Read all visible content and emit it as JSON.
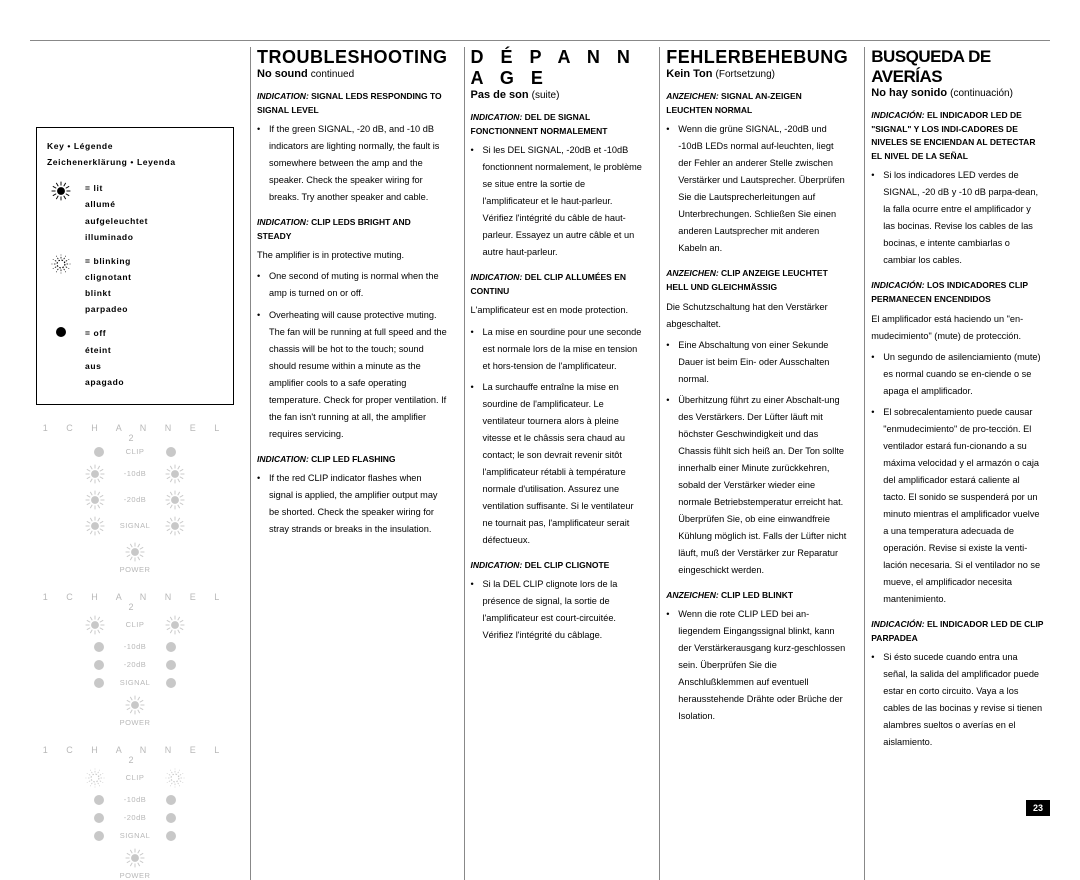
{
  "page_number": "23",
  "key": {
    "title_lines": [
      "Key • Légende",
      "Zeichenerklärung • Leyenda"
    ],
    "rows": [
      {
        "icon": "lit",
        "labels": [
          "= lit",
          "allumé",
          "aufgeleuchtet",
          "illuminado"
        ]
      },
      {
        "icon": "blink",
        "labels": [
          "= blinking",
          "clignotant",
          "blinkt",
          "parpadeo"
        ]
      },
      {
        "icon": "off",
        "labels": [
          "= off",
          "éteint",
          "aus",
          "apagado"
        ]
      }
    ]
  },
  "panels": [
    {
      "label": "1   C H A N N E L   2",
      "rows": [
        {
          "name": "CLIP",
          "left": "off",
          "right": "off"
        },
        {
          "name": "-10dB",
          "left": "lit",
          "right": "lit"
        },
        {
          "name": "-20dB",
          "left": "lit",
          "right": "lit"
        },
        {
          "name": "SIGNAL",
          "left": "lit",
          "right": "lit"
        },
        {
          "name": "POWER",
          "left": "",
          "right": "",
          "single": "lit"
        }
      ]
    },
    {
      "label": "1   C H A N N E L   2",
      "rows": [
        {
          "name": "CLIP",
          "left": "lit",
          "right": "lit"
        },
        {
          "name": "-10dB",
          "left": "off",
          "right": "off"
        },
        {
          "name": "-20dB",
          "left": "off",
          "right": "off"
        },
        {
          "name": "SIGNAL",
          "left": "off",
          "right": "off"
        },
        {
          "name": "POWER",
          "left": "",
          "right": "",
          "single": "lit"
        }
      ]
    },
    {
      "label": "1   C H A N N E L   2",
      "rows": [
        {
          "name": "CLIP",
          "left": "blink",
          "right": "blink"
        },
        {
          "name": "-10dB",
          "left": "off",
          "right": "off"
        },
        {
          "name": "-20dB",
          "left": "off",
          "right": "off"
        },
        {
          "name": "SIGNAL",
          "left": "off",
          "right": "off"
        },
        {
          "name": "POWER",
          "left": "",
          "right": "",
          "single": "lit"
        }
      ]
    }
  ],
  "langs": [
    {
      "title": "TROUBLESHOOTING",
      "title_style": "normal",
      "sub": "No sound",
      "sub_paren": "continued",
      "ind_lead": "INDICATION:",
      "sections": [
        {
          "head": "SIGNAL LEDs RESPONDING TO SIGNAL LEVEL",
          "intro": "",
          "bullets": [
            "If the green SIGNAL, -20 dB, and -10 dB indicators are lighting normally, the fault is somewhere between the amp and the speaker. Check the speaker wiring for breaks. Try another speaker and cable."
          ]
        },
        {
          "head": "CLIP LEDs BRIGHT AND STEADY",
          "intro": "The amplifier is in protective muting.",
          "bullets": [
            "One second of muting is normal when the amp is turned on or off.",
            "Overheating will cause protective muting. The fan will be running at full speed and the chassis will be hot to the touch; sound should resume within a minute as the amplifier cools to a safe operating temperature. Check for proper ventilation. If the fan isn't running at all, the amplifier requires servicing."
          ]
        },
        {
          "head": "CLIP LED FLASHING",
          "intro": "",
          "bullets": [
            "If the red CLIP indicator flashes when signal is applied, the amplifier output may be shorted. Check the speaker wiring for stray strands or breaks in the insulation."
          ]
        }
      ]
    },
    {
      "title": "D É P A N N A G E",
      "title_style": "spaced",
      "sub": "Pas de son",
      "sub_paren": "(suite)",
      "ind_lead": "INDICATION:",
      "sections": [
        {
          "head": "DEL DE SIGNAL FONCTIONNENT NORMALEMENT",
          "intro": "",
          "bullets": [
            "Si les DEL SIGNAL, -20dB et -10dB fonctionnent normalement, le problème se situe entre la sortie de l'amplificateur et le haut-parleur. Vérifiez l'intégrité du câble de haut-parleur. Essayez un autre câble et un autre haut-parleur."
          ]
        },
        {
          "head": "DEL CLIP ALLUMÉES EN CONTINU",
          "intro": "L'amplificateur est en mode protection.",
          "bullets": [
            "La mise en sourdine pour une seconde est normale lors de la mise en tension et hors-tension de l'amplificateur.",
            "La surchauffe entraîne la mise en sourdine de l'amplificateur. Le ventilateur tournera alors à pleine vitesse et le châssis sera chaud au contact; le son devrait revenir sitôt l'amplificateur rétabli à température normale d'utilisation. Assurez une ventilation suffisante. Si le ventilateur ne tournait pas, l'amplificateur serait défectueux."
          ]
        },
        {
          "head": "DEL CLIP CLIGNOTE",
          "intro": "",
          "bullets": [
            "Si la DEL CLIP clignote lors de la présence de signal, la sortie de l'amplificateur est court-circuitée. Vérifiez l'intégrité du câblage."
          ]
        }
      ]
    },
    {
      "title": "FEHLERBEHEBUNG",
      "title_style": "normal",
      "sub": "Kein Ton",
      "sub_paren": "(Fortsetzung)",
      "ind_lead": "ANZEICHEN:",
      "sections": [
        {
          "head": "SIGNAL AN-ZEIGEN LEUCHTEN NORMAL",
          "intro": "",
          "bullets": [
            "Wenn die grüne SIGNAL, -20dB und -10dB LEDs normal auf-leuchten, liegt der Fehler an anderer Stelle zwischen Verstärker und Lautsprecher. Überprüfen Sie die Lautsprecherleitungen auf Unterbrechungen. Schließen Sie einen anderen Lautsprecher mit anderen Kabeln an."
          ]
        },
        {
          "head": "CLIP ANZEIGE LEUCHTET HELL UND GLEICHMÄßIG",
          "intro": "Die Schutzschaltung hat den Verstärker abgeschaltet.",
          "bullets": [
            "Eine Abschaltung von einer Sekunde Dauer ist beim Ein- oder Ausschalten normal.",
            "Überhitzung führt zu einer Abschalt-ung des Verstärkers. Der Lüfter läuft mit höchster Geschwindigkeit und das Chassis fühlt sich heiß an. Der Ton sollte innerhalb einer Minute zurückkehren, sobald der Verstärker wieder eine normale Betriebstemperatur erreicht hat. Überprüfen Sie, ob eine einwandfreie Kühlung möglich ist. Falls der Lüfter nicht läuft, muß der Verstärker zur Reparatur eingeschickt werden."
          ]
        },
        {
          "head": "CLIP LED BLINKT",
          "intro": "",
          "bullets": [
            "Wenn die rote CLIP LED bei an-liegendem Eingangssignal blinkt, kann der Verstärkerausgang kurz-geschlossen sein. Überprüfen Sie die Anschlußklemmen auf eventuell herausstehende Drähte oder Brüche der Isolation."
          ]
        }
      ]
    },
    {
      "title": "BUSQUEDA DE AVERÍAS",
      "title_style": "condensed",
      "sub": "No hay sonido",
      "sub_paren": "(continuación)",
      "ind_lead": "INDICACIÓN:",
      "sections": [
        {
          "head": "EL INDICADOR LED DE \"SIGNAL\" Y LOS INDI-CADORES DE NIVELES SE ENCIENDAN AL DETECTAR EL NIVEL DE LA SEÑAL",
          "intro": "",
          "bullets": [
            "Si los indicadores LED verdes de SIGNAL, -20 dB y -10 dB parpa-dean, la falla ocurre entre el amplificador y las bocinas. Revise los cables de las bocinas, e intente cambiarlas o cambiar los cables."
          ]
        },
        {
          "head": "LOS INDICADORES CLIP PERMANECEN ENCENDIDOS",
          "intro": "El amplificador está haciendo un \"en-mudecimiento\" (mute) de protección.",
          "bullets": [
            "Un segundo de asilenciamiento (mute) es normal cuando se en-ciende o se apaga el amplificador.",
            "El sobrecalentamiento puede causar \"enmudecimiento\" de pro-tección. El ventilador estará fun-cionando a su máxima velocidad y el armazón o caja del amplificador estará caliente al tacto. El sonido se suspenderá por un minuto mientras el amplificador vuelve a una temperatura adecuada de operación. Revise si existe la venti-lación necesaria. Si el ventilador no se mueve, el amplificador necesita mantenimiento."
          ]
        },
        {
          "head": "EL INDICADOR LED DE CLIP PARPADEA",
          "intro": "",
          "bullets": [
            "Si ésto sucede cuando entra una señal, la salida del amplificador puede estar en corto circuito. Vaya a los cables de las bocinas y revise si tienen alambres sueltos o averías en el aislamiento."
          ]
        }
      ]
    }
  ]
}
